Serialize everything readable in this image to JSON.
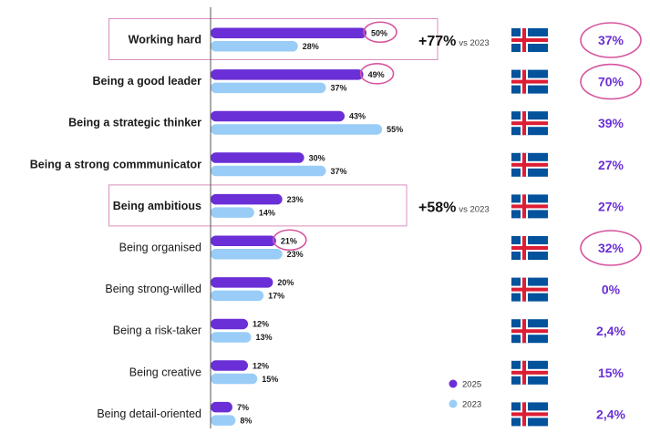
{
  "chart_data": {
    "type": "bar",
    "orientation": "horizontal",
    "categories": [
      "Working hard",
      "Being a good leader",
      "Being a strategic thinker",
      "Being a strong commmunicator",
      "Being ambitious",
      "Being organised",
      "Being strong-willed",
      "Being a risk-taker",
      "Being creative",
      "Being detail-oriented"
    ],
    "bold_categories": [
      0,
      1,
      2,
      3,
      4
    ],
    "boxed_categories": [
      0,
      4
    ],
    "series": [
      {
        "name": "2025",
        "values": [
          50,
          49,
          43,
          30,
          23,
          21,
          20,
          12,
          12,
          7
        ],
        "labels": [
          "50%",
          "49%",
          "43%",
          "30%",
          "23%",
          "21%",
          "20%",
          "12%",
          "12%",
          "7%"
        ],
        "color": "#6a2fd6"
      },
      {
        "name": "2023",
        "values": [
          28,
          37,
          55,
          37,
          14,
          23,
          17,
          13,
          15,
          8
        ],
        "labels": [
          "28%",
          "37%",
          "55%",
          "37%",
          "14%",
          "23%",
          "17%",
          "13%",
          "15%",
          "8%"
        ],
        "color": "#99cdf7"
      }
    ],
    "circled_2025": [
      0,
      1,
      5
    ],
    "changes": [
      {
        "row": 0,
        "value": "+77%",
        "suffix": "vs 2023"
      },
      {
        "row": 4,
        "value": "+58%",
        "suffix": "vs 2023"
      }
    ],
    "iceland_percent": [
      "37%",
      "70%",
      "39%",
      "27%",
      "27%",
      "32%",
      "0%",
      "2,4%",
      "15%",
      "2,4%"
    ],
    "circled_iceland": [
      0,
      1,
      5
    ],
    "flag_icon": "iceland-flag-icon",
    "xlim": [
      0,
      100
    ],
    "legend_position": "bottom-right",
    "grid": false,
    "colors": {
      "highlight_circle": "#d6559e",
      "box_border": "#d98fbf",
      "percent_text": "#6a2fd6",
      "axis_line": "#555555"
    }
  }
}
